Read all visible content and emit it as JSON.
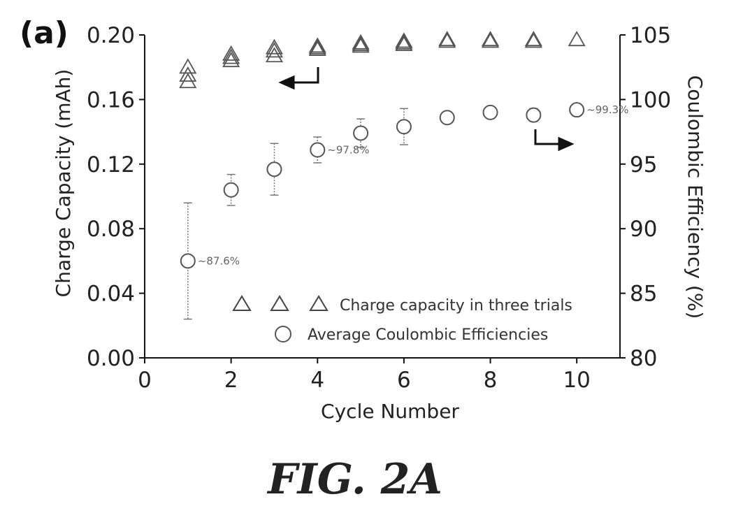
{
  "chart_data": {
    "type": "scatter",
    "panel_label": "(a)",
    "xlabel": "Cycle Number",
    "ylabel_left": "Charge Capacity (mAh)",
    "ylabel_right": "Coulombic Efficiency (%)",
    "xlim": [
      0,
      11
    ],
    "ylim_left": [
      0.0,
      0.2
    ],
    "ylim_right": [
      80,
      105
    ],
    "x_ticks": [
      "0",
      "2",
      "4",
      "6",
      "8",
      "10"
    ],
    "y_ticks_left": [
      "0.00",
      "0.04",
      "0.08",
      "0.12",
      "0.16",
      "0.20"
    ],
    "y_ticks_right": [
      "80",
      "85",
      "90",
      "95",
      "100",
      "105"
    ],
    "series": [
      {
        "name": "Charge capacity in three trials",
        "axis": "left",
        "marker": "triangle",
        "points": [
          {
            "x": 1,
            "y": 0.18
          },
          {
            "x": 1,
            "y": 0.175
          },
          {
            "x": 1,
            "y": 0.171
          },
          {
            "x": 2,
            "y": 0.188
          },
          {
            "x": 2,
            "y": 0.186
          },
          {
            "x": 2,
            "y": 0.184
          },
          {
            "x": 3,
            "y": 0.192
          },
          {
            "x": 3,
            "y": 0.19
          },
          {
            "x": 3,
            "y": 0.187
          },
          {
            "x": 4,
            "y": 0.193
          },
          {
            "x": 4,
            "y": 0.192
          },
          {
            "x": 4,
            "y": 0.191
          },
          {
            "x": 5,
            "y": 0.195
          },
          {
            "x": 5,
            "y": 0.194
          },
          {
            "x": 5,
            "y": 0.193
          },
          {
            "x": 6,
            "y": 0.196
          },
          {
            "x": 6,
            "y": 0.195
          },
          {
            "x": 6,
            "y": 0.194
          },
          {
            "x": 7,
            "y": 0.197
          },
          {
            "x": 7,
            "y": 0.196
          },
          {
            "x": 8,
            "y": 0.197
          },
          {
            "x": 8,
            "y": 0.196
          },
          {
            "x": 9,
            "y": 0.197
          },
          {
            "x": 9,
            "y": 0.196
          },
          {
            "x": 10,
            "y": 0.197
          }
        ]
      },
      {
        "name": "Average Coulombic Efficiencies",
        "axis": "right",
        "marker": "circle",
        "points": [
          {
            "x": 1,
            "y": 87.5,
            "err": 4.5
          },
          {
            "x": 2,
            "y": 93.0,
            "err": 1.2
          },
          {
            "x": 3,
            "y": 94.6,
            "err": 2.0
          },
          {
            "x": 4,
            "y": 96.1,
            "err": 1.0
          },
          {
            "x": 5,
            "y": 97.4,
            "err": 1.1
          },
          {
            "x": 6,
            "y": 97.9,
            "err": 1.4
          },
          {
            "x": 7,
            "y": 98.6,
            "err": 0.4
          },
          {
            "x": 8,
            "y": 99.0,
            "err": 0.3
          },
          {
            "x": 9,
            "y": 98.8,
            "err": 0.5
          },
          {
            "x": 10,
            "y": 99.2,
            "err": 0.3
          }
        ]
      }
    ],
    "annotations": [
      {
        "text": "~87.6%",
        "x": 1,
        "axis": "right",
        "y": 87.5
      },
      {
        "text": "~97.8%",
        "x": 4,
        "axis": "right",
        "y": 96.1
      },
      {
        "text": "~99.3%",
        "x": 10,
        "axis": "right",
        "y": 99.2
      }
    ],
    "legend": {
      "placement": "bottom-right"
    },
    "caption": "FIG. 2A"
  }
}
